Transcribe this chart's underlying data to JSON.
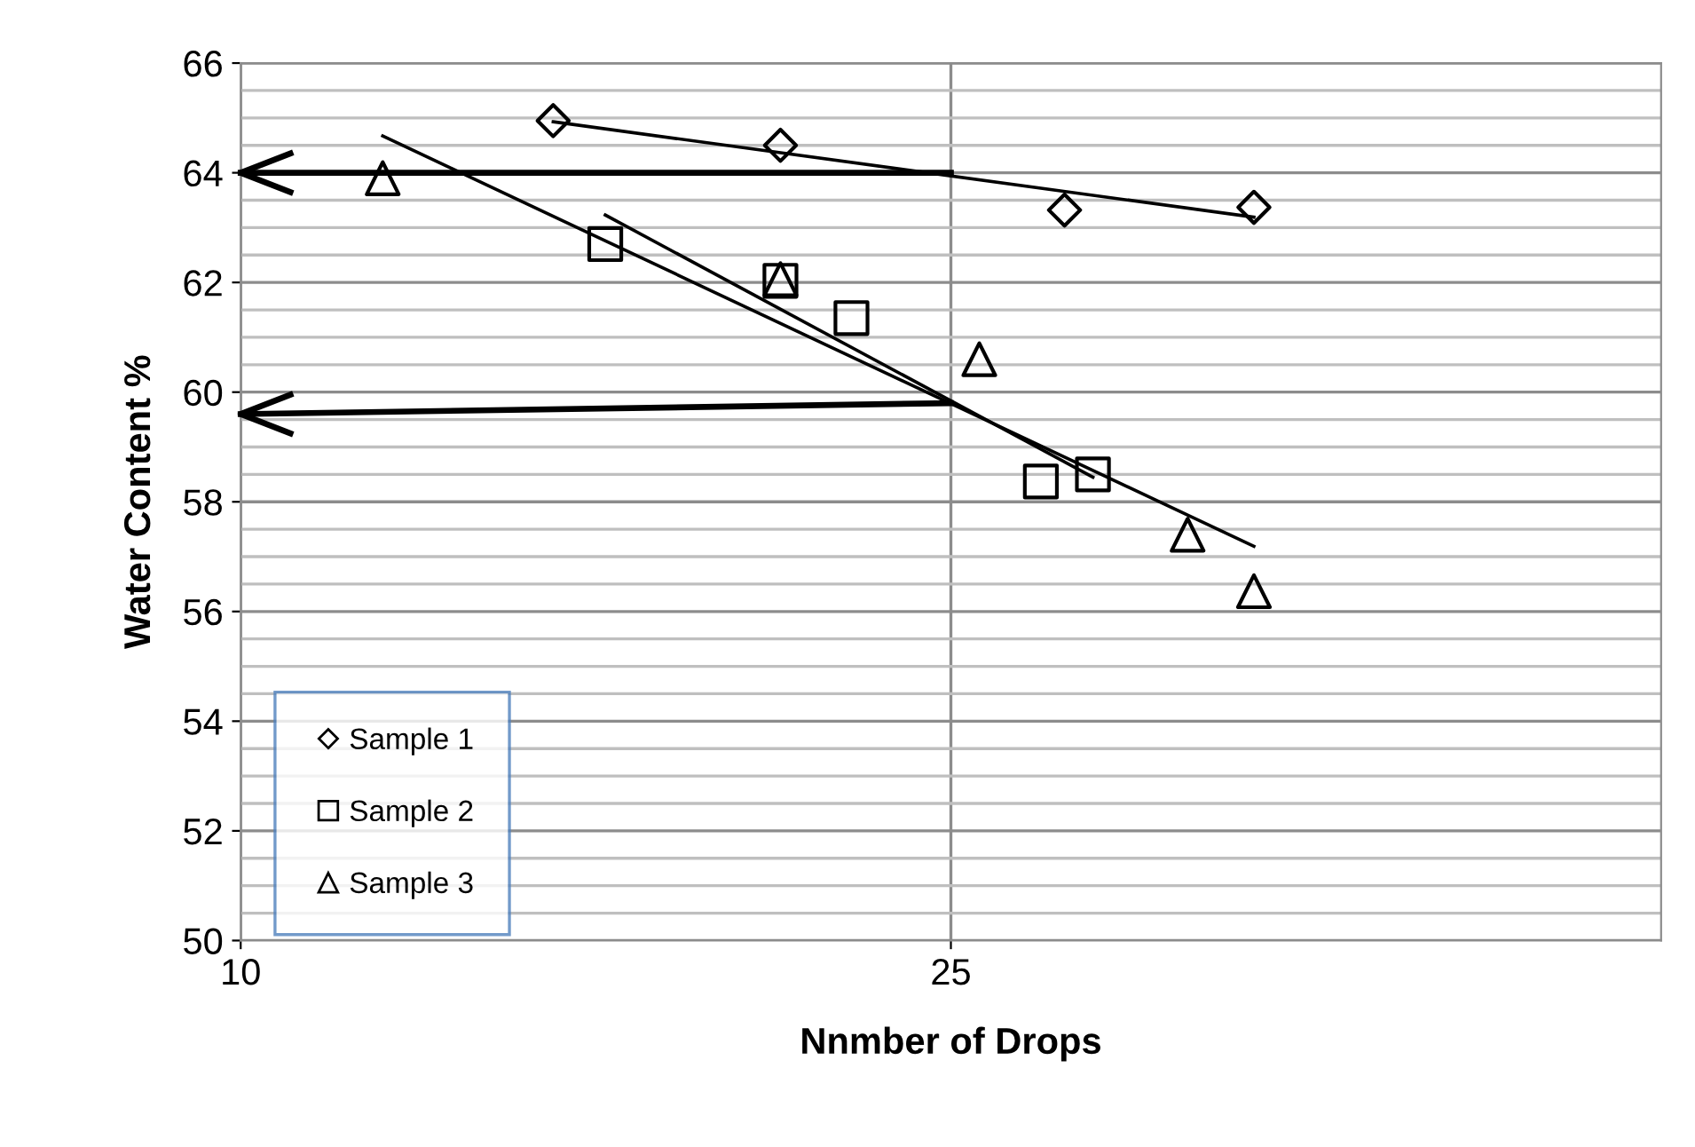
{
  "chart_data": {
    "type": "scatter",
    "xlabel": "Nnmber of Drops",
    "ylabel": "Water Content %",
    "xlim": [
      10,
      40
    ],
    "xticks": [
      10,
      25
    ],
    "ylim": [
      50,
      66
    ],
    "yticks": [
      50,
      52,
      54,
      56,
      58,
      60,
      62,
      64,
      66
    ],
    "grid": true,
    "legend": "bottom left",
    "series": [
      {
        "name": "Sample 1",
        "marker": "diamond",
        "color": "#000000",
        "x": [
          16.6,
          21.4,
          27.4,
          31.4
        ],
        "values": [
          64.95,
          64.5,
          63.32,
          63.37
        ]
      },
      {
        "name": "Sample 2",
        "marker": "square",
        "color": "#000000",
        "x": [
          17.7,
          21.4,
          22.9,
          26.9,
          28.0
        ],
        "values": [
          62.7,
          62.03,
          61.35,
          58.37,
          58.5
        ]
      },
      {
        "name": "Sample 3",
        "marker": "triangle",
        "color": "#000000",
        "x": [
          13.0,
          21.4,
          25.6,
          30.0,
          31.4
        ],
        "values": [
          63.9,
          62.06,
          60.6,
          57.4,
          56.37
        ]
      },
      {
        "type": "line",
        "color": "#000000",
        "x": [
          16.6,
          31.4
        ],
        "values": [
          64.93,
          63.19
        ]
      },
      {
        "type": "line",
        "color": "#000000",
        "x": [
          17.7,
          28.0
        ],
        "values": [
          63.23,
          58.45
        ]
      },
      {
        "type": "line",
        "color": "#000000",
        "x": [
          13.0,
          31.4
        ],
        "values": [
          64.67,
          57.19
        ]
      },
      {
        "type": "line",
        "color": "#000000",
        "x": [
          25,
          10
        ],
        "values": [
          64.0,
          64.0
        ]
      },
      {
        "type": "line",
        "color": "#000000",
        "x": [
          25,
          10
        ],
        "values": [
          59.8,
          59.6
        ]
      }
    ]
  }
}
